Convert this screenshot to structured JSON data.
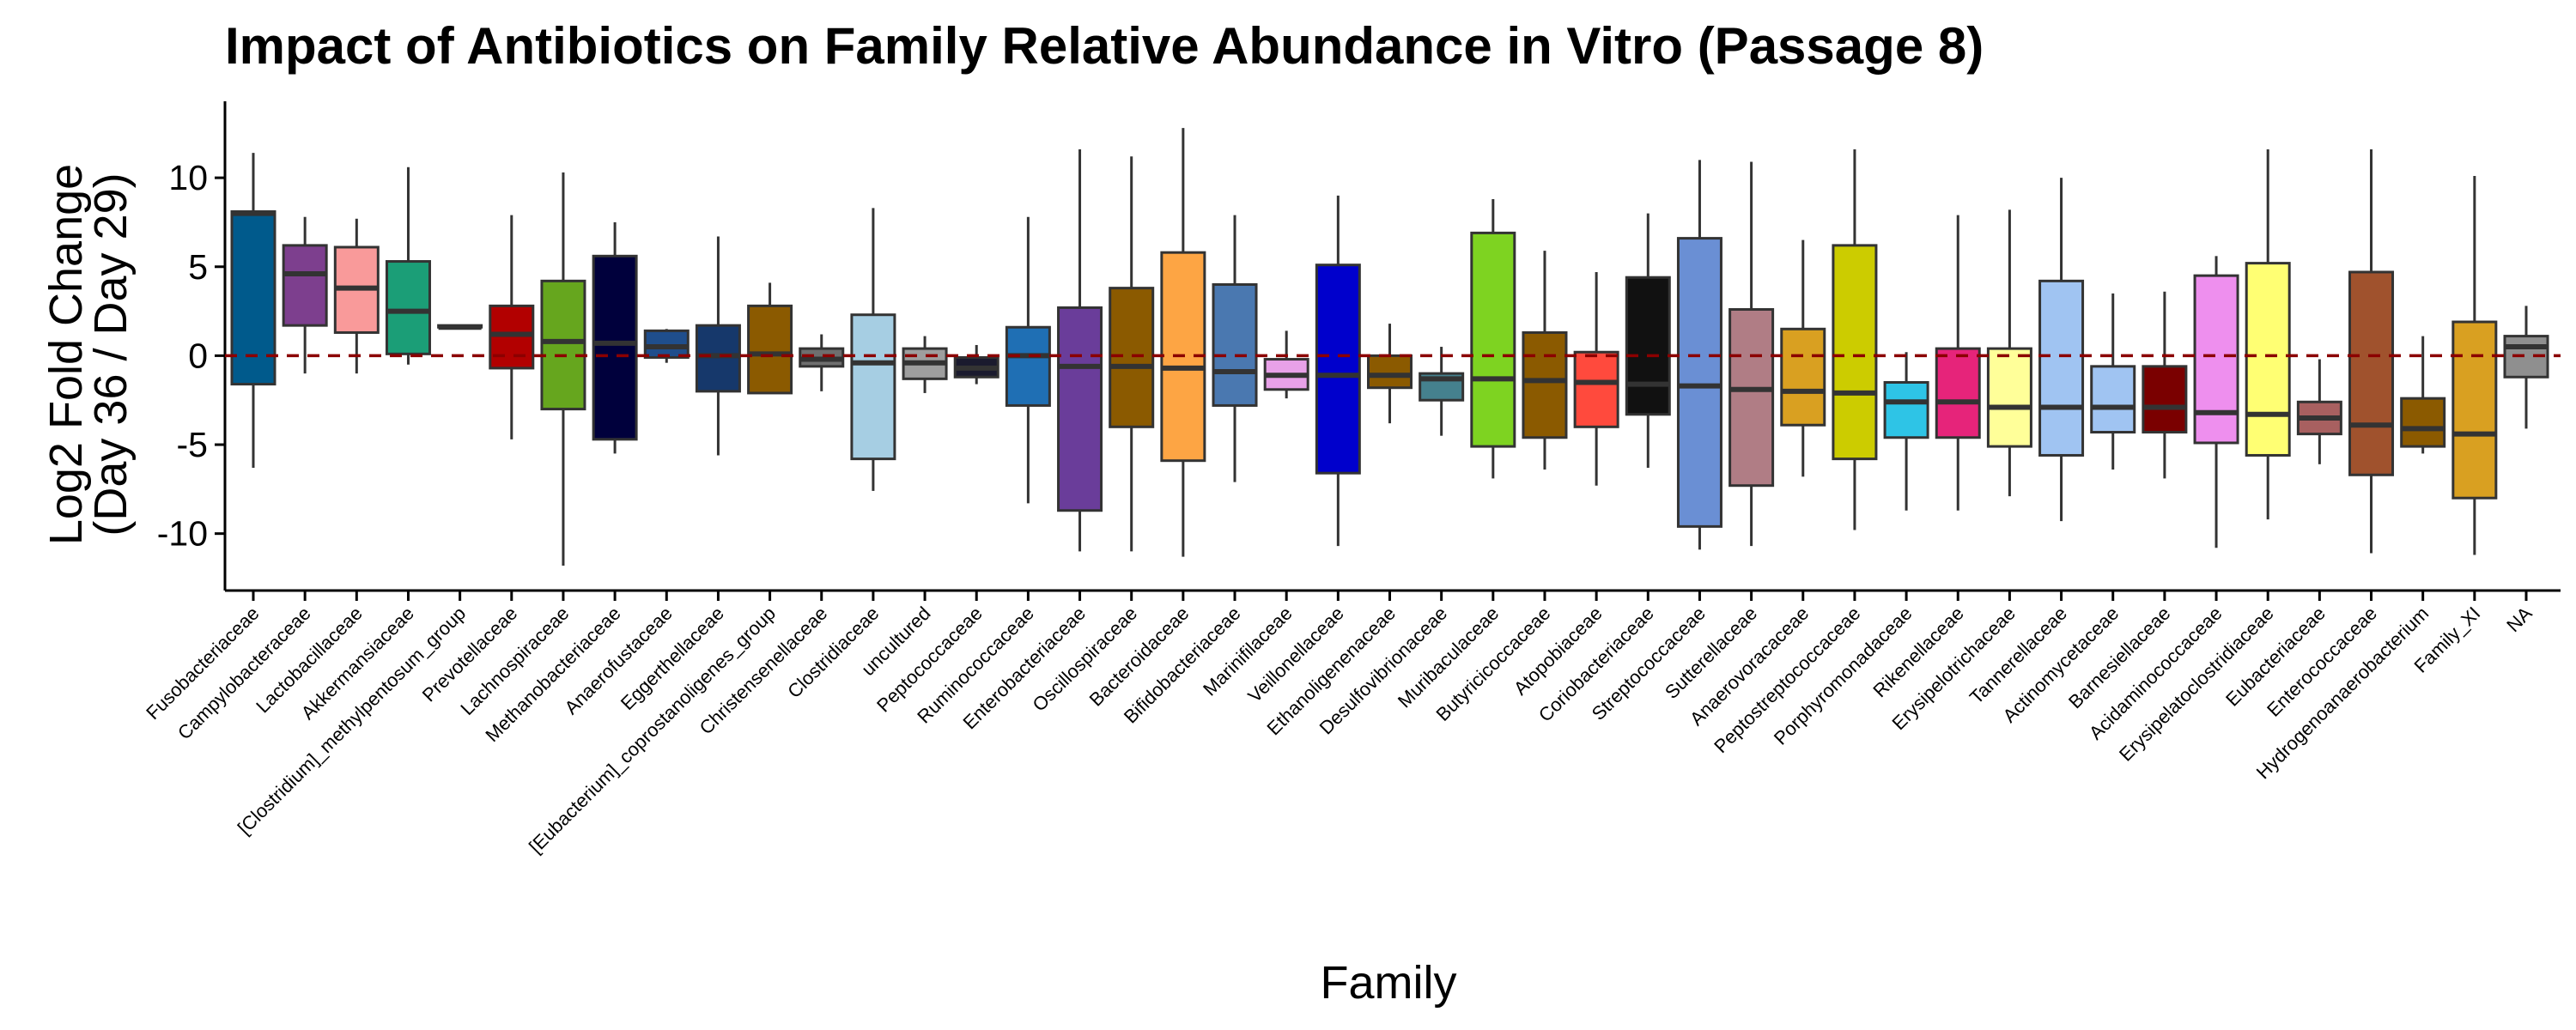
{
  "chart_data": {
    "type": "box",
    "title": "Impact of Antibiotics on Family Relative Abundance in Vitro (Passage 8)",
    "xlabel": "Family",
    "ylabel_line1": "Log2 Fold Change",
    "ylabel_line2": "(Day 36 / Day 29)",
    "ylim": [
      -13.2,
      14.3
    ],
    "yticks": [
      {
        "value": 10,
        "label": "10"
      },
      {
        "value": 5,
        "label": "5"
      },
      {
        "value": 0,
        "label": "0"
      },
      {
        "value": -5,
        "label": "-5"
      },
      {
        "value": -10,
        "label": "-10"
      }
    ],
    "reference_line": {
      "value": 0,
      "color": "#8B0000",
      "style": "dashed"
    },
    "grid": false,
    "legend": "none",
    "categories": [
      {
        "name": "Fusobacteriaceae",
        "color": "#005A8C",
        "whisker_low": -6.3,
        "q1": -1.6,
        "median": 8.0,
        "q3": 8.1,
        "whisker_high": 11.4
      },
      {
        "name": "Campylobacteraceae",
        "color": "#7D3F8E",
        "whisker_low": -1.0,
        "q1": 1.7,
        "median": 4.6,
        "q3": 6.2,
        "whisker_high": 7.8
      },
      {
        "name": "Lactobacillaceae",
        "color": "#F99A9A",
        "whisker_low": -1.0,
        "q1": 1.3,
        "median": 3.8,
        "q3": 6.1,
        "whisker_high": 7.7
      },
      {
        "name": "Akkermansiaceae",
        "color": "#1B9E77",
        "whisker_low": -0.5,
        "q1": 0.1,
        "median": 2.5,
        "q3": 5.3,
        "whisker_high": 10.6
      },
      {
        "name": "[Clostridium]_methylpentosum_group",
        "color": "#8F8F8F",
        "whisker_low": 1.6,
        "q1": 1.6,
        "median": 1.6,
        "q3": 1.7,
        "whisker_high": 1.7
      },
      {
        "name": "Prevotellaceae",
        "color": "#B20000",
        "whisker_low": -4.7,
        "q1": -0.7,
        "median": 1.2,
        "q3": 2.8,
        "whisker_high": 7.9
      },
      {
        "name": "Lachnospiraceae",
        "color": "#66A61E",
        "whisker_low": -11.8,
        "q1": -3.0,
        "median": 0.8,
        "q3": 4.2,
        "whisker_high": 10.3
      },
      {
        "name": "Methanobacteriaceae",
        "color": "#00003C",
        "whisker_low": -5.5,
        "q1": -4.7,
        "median": 0.7,
        "q3": 5.6,
        "whisker_high": 7.5
      },
      {
        "name": "Anaerofustaceae",
        "color": "#1F4E8C",
        "whisker_low": -0.4,
        "q1": -0.1,
        "median": 0.5,
        "q3": 1.4,
        "whisker_high": 1.5
      },
      {
        "name": "Eggerthellaceae",
        "color": "#16386B",
        "whisker_low": -5.6,
        "q1": -2.0,
        "median": 0.0,
        "q3": 1.7,
        "whisker_high": 6.7
      },
      {
        "name": "[Eubacterium]_coprostanoligenes_group",
        "color": "#8B5A00",
        "whisker_low": -2.1,
        "q1": -2.1,
        "median": 0.1,
        "q3": 2.8,
        "whisker_high": 4.1
      },
      {
        "name": "Christensenellaceae",
        "color": "#6E6E6E",
        "whisker_low": -2.0,
        "q1": -0.6,
        "median": -0.2,
        "q3": 0.4,
        "whisker_high": 1.2
      },
      {
        "name": "Clostridiaceae",
        "color": "#A6CEE3",
        "whisker_low": -7.6,
        "q1": -5.8,
        "median": -0.4,
        "q3": 2.3,
        "whisker_high": 8.3
      },
      {
        "name": "uncultured",
        "color": "#9E9E9E",
        "whisker_low": -2.1,
        "q1": -1.3,
        "median": -0.4,
        "q3": 0.4,
        "whisker_high": 1.1
      },
      {
        "name": "Peptococcaceae",
        "color": "#1A1A2E",
        "whisker_low": -1.6,
        "q1": -1.2,
        "median": -0.7,
        "q3": -0.1,
        "whisker_high": 0.6
      },
      {
        "name": "Ruminococcaceae",
        "color": "#1F6FB4",
        "whisker_low": -8.3,
        "q1": -2.8,
        "median": 0.0,
        "q3": 1.6,
        "whisker_high": 7.8
      },
      {
        "name": "Enterobacteriaceae",
        "color": "#6A3D9A",
        "whisker_low": -11.0,
        "q1": -8.7,
        "median": -0.6,
        "q3": 2.7,
        "whisker_high": 11.6
      },
      {
        "name": "Oscillospiraceae",
        "color": "#8B5A00",
        "whisker_low": -11.0,
        "q1": -4.0,
        "median": -0.6,
        "q3": 3.8,
        "whisker_high": 11.2
      },
      {
        "name": "Bacteroidaceae",
        "color": "#FDA544",
        "whisker_low": -11.3,
        "q1": -5.9,
        "median": -0.7,
        "q3": 5.8,
        "whisker_high": 12.8
      },
      {
        "name": "Bifidobacteriaceae",
        "color": "#4A78B0",
        "whisker_low": -7.1,
        "q1": -2.8,
        "median": -0.9,
        "q3": 4.0,
        "whisker_high": 7.9
      },
      {
        "name": "Marinifilaceae",
        "color": "#E8A1E8",
        "whisker_low": -2.4,
        "q1": -1.9,
        "median": -1.1,
        "q3": -0.2,
        "whisker_high": 1.4
      },
      {
        "name": "Veillonellaceae",
        "color": "#0000CC",
        "whisker_low": -10.7,
        "q1": -6.6,
        "median": -1.1,
        "q3": 5.1,
        "whisker_high": 9.0
      },
      {
        "name": "Ethanoligenenaceae",
        "color": "#8B5A00",
        "whisker_low": -3.8,
        "q1": -1.8,
        "median": -1.1,
        "q3": 0.0,
        "whisker_high": 1.8
      },
      {
        "name": "Desulfovibrionaceae",
        "color": "#45818E",
        "whisker_low": -4.5,
        "q1": -2.5,
        "median": -1.3,
        "q3": -1.0,
        "whisker_high": 0.5
      },
      {
        "name": "Muribaculaceae",
        "color": "#7ED321",
        "whisker_low": -6.9,
        "q1": -5.1,
        "median": -1.3,
        "q3": 6.9,
        "whisker_high": 8.8
      },
      {
        "name": "Butyricicoccaceae",
        "color": "#8B5A00",
        "whisker_low": -6.4,
        "q1": -4.6,
        "median": -1.4,
        "q3": 1.3,
        "whisker_high": 5.9
      },
      {
        "name": "Atopobiaceae",
        "color": "#FF4A3D",
        "whisker_low": -7.3,
        "q1": -4.0,
        "median": -1.5,
        "q3": 0.2,
        "whisker_high": 4.7
      },
      {
        "name": "Coriobacteriaceae",
        "color": "#111111",
        "whisker_low": -6.3,
        "q1": -3.3,
        "median": -1.6,
        "q3": 4.4,
        "whisker_high": 8.0
      },
      {
        "name": "Streptococcaceae",
        "color": "#6A8FD4",
        "whisker_low": -10.9,
        "q1": -9.6,
        "median": -1.7,
        "q3": 6.6,
        "whisker_high": 11.0
      },
      {
        "name": "Sutterellaceae",
        "color": "#B07D85",
        "whisker_low": -10.7,
        "q1": -7.3,
        "median": -1.9,
        "q3": 2.6,
        "whisker_high": 10.9
      },
      {
        "name": "Anaerovoracaceae",
        "color": "#D9A021",
        "whisker_low": -6.8,
        "q1": -3.9,
        "median": -2.0,
        "q3": 1.5,
        "whisker_high": 6.5
      },
      {
        "name": "Peptostreptococcaceae",
        "color": "#CCCC00",
        "whisker_low": -9.8,
        "q1": -5.8,
        "median": -2.1,
        "q3": 6.2,
        "whisker_high": 11.6
      },
      {
        "name": "Porphyromonadaceae",
        "color": "#2EC4E6",
        "whisker_low": -8.7,
        "q1": -4.6,
        "median": -2.6,
        "q3": -1.5,
        "whisker_high": 0.2
      },
      {
        "name": "Rikenellaceae",
        "color": "#E6247A",
        "whisker_low": -8.7,
        "q1": -4.6,
        "median": -2.6,
        "q3": 0.4,
        "whisker_high": 7.9
      },
      {
        "name": "Erysipelotrichaceae",
        "color": "#FFFF99",
        "whisker_low": -7.9,
        "q1": -5.1,
        "median": -2.9,
        "q3": 0.4,
        "whisker_high": 8.2
      },
      {
        "name": "Tannerellaceae",
        "color": "#A0C4F2",
        "whisker_low": -9.3,
        "q1": -5.6,
        "median": -2.9,
        "q3": 4.2,
        "whisker_high": 10.0
      },
      {
        "name": "Actinomycetaceae",
        "color": "#A0C4F2",
        "whisker_low": -6.4,
        "q1": -4.3,
        "median": -2.9,
        "q3": -0.6,
        "whisker_high": 3.5
      },
      {
        "name": "Barnesiellaceae",
        "color": "#7A0000",
        "whisker_low": -6.9,
        "q1": -4.3,
        "median": -2.9,
        "q3": -0.6,
        "whisker_high": 3.6
      },
      {
        "name": "Acidaminococcaceae",
        "color": "#EE8FEE",
        "whisker_low": -10.8,
        "q1": -4.9,
        "median": -3.2,
        "q3": 4.5,
        "whisker_high": 5.6
      },
      {
        "name": "Erysipelatoclostridiaceae",
        "color": "#FFFF73",
        "whisker_low": -9.2,
        "q1": -5.6,
        "median": -3.3,
        "q3": 5.2,
        "whisker_high": 11.6
      },
      {
        "name": "Eubacteriaceae",
        "color": "#A86060",
        "whisker_low": -6.1,
        "q1": -4.4,
        "median": -3.5,
        "q3": -2.6,
        "whisker_high": -0.2
      },
      {
        "name": "Enterococcaceae",
        "color": "#A0522D",
        "whisker_low": -11.1,
        "q1": -6.7,
        "median": -3.9,
        "q3": 4.7,
        "whisker_high": 11.6
      },
      {
        "name": "Hydrogenoanaerobacterium",
        "color": "#8B5A00",
        "whisker_low": -5.5,
        "q1": -5.1,
        "median": -4.1,
        "q3": -2.4,
        "whisker_high": 1.1
      },
      {
        "name": "Family_XI",
        "color": "#D9A021",
        "whisker_low": -11.2,
        "q1": -8.0,
        "median": -4.4,
        "q3": 1.9,
        "whisker_high": 10.1
      },
      {
        "name": "NA",
        "color": "#8F8F8F",
        "whisker_low": -4.1,
        "q1": -1.2,
        "median": 0.5,
        "q3": 1.1,
        "whisker_high": 2.8
      }
    ]
  }
}
